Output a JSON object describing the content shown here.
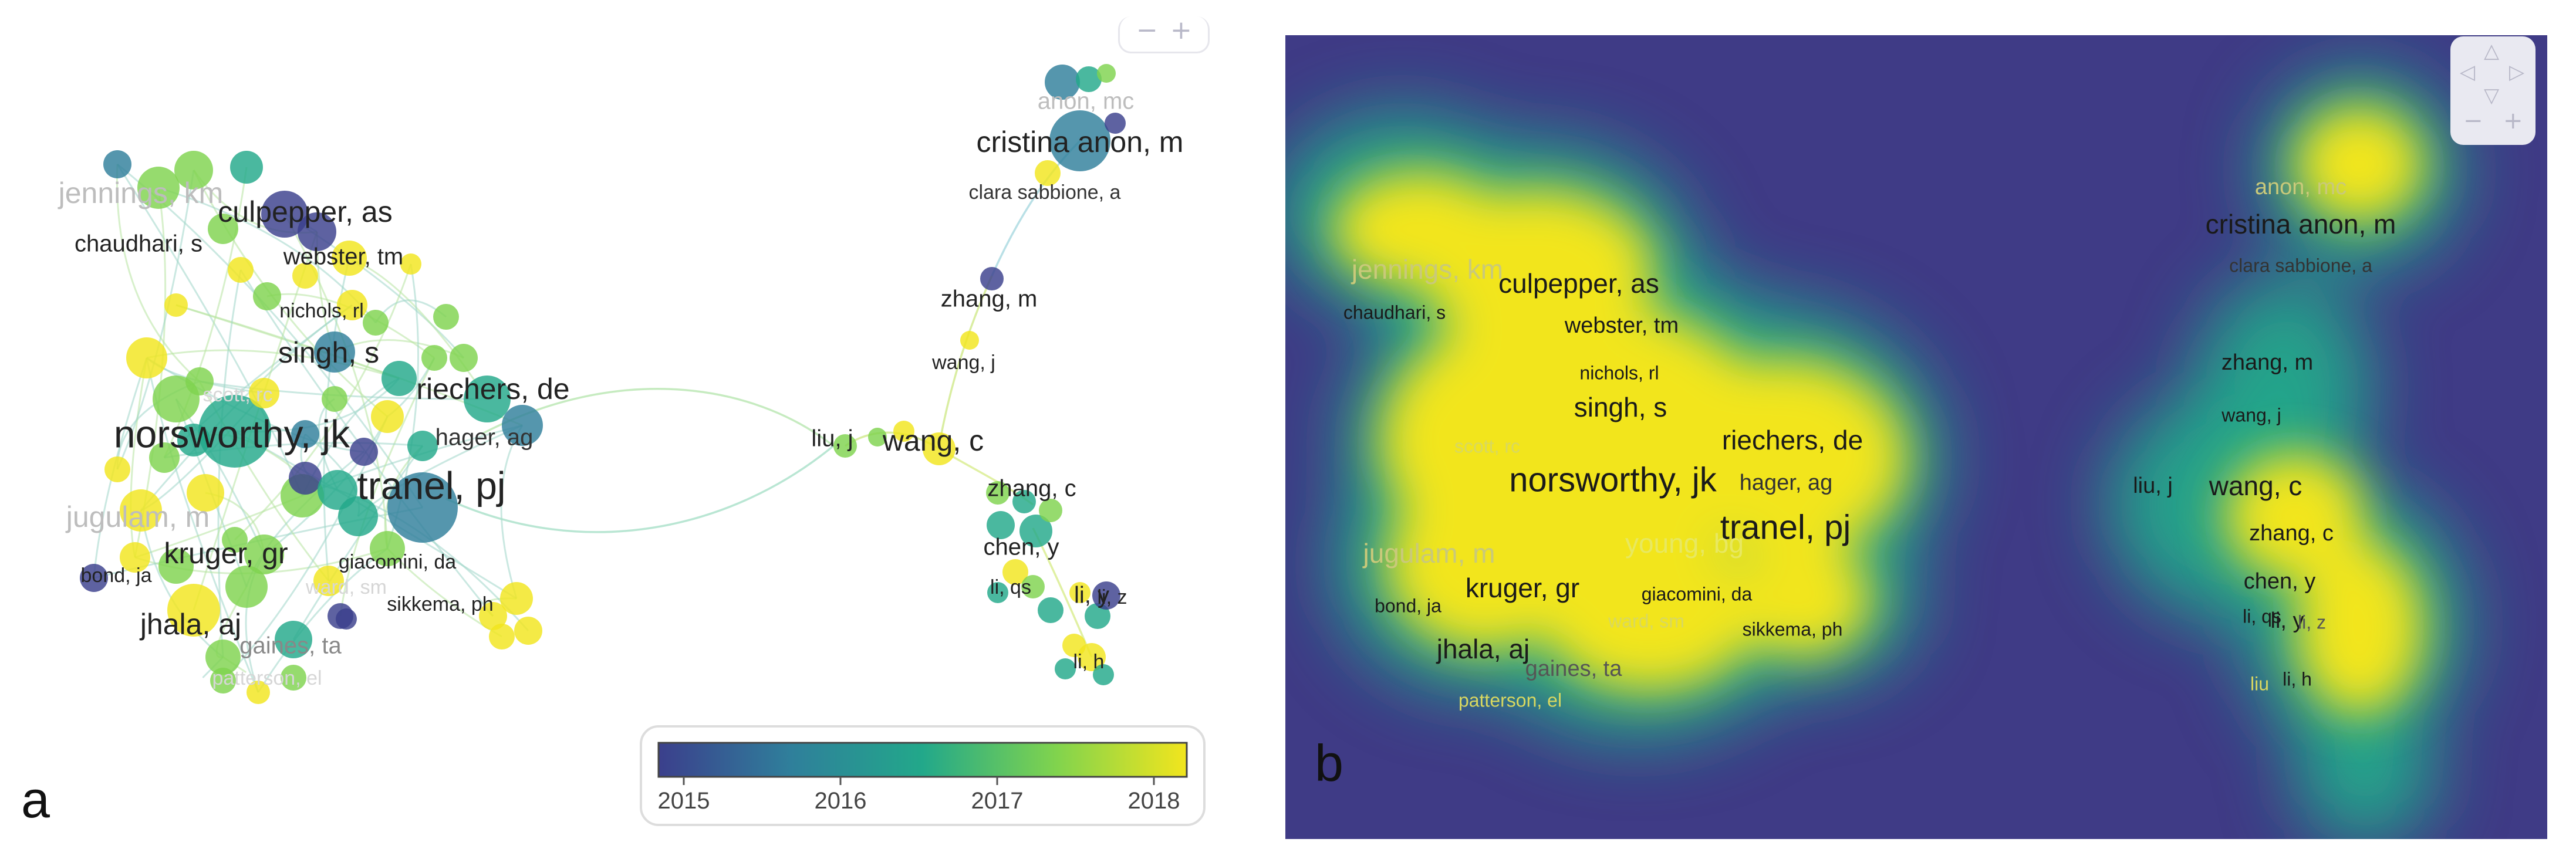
{
  "panels": {
    "a": {
      "letter": "a",
      "kind": "network-visualization",
      "legend": {
        "ticks": [
          "2015",
          "2016",
          "2017",
          "2018"
        ],
        "colors": [
          "#3b3f8c",
          "#2f7f9b",
          "#22a88a",
          "#7fd34e",
          "#f2e51d"
        ]
      },
      "labels": [
        {
          "id": "norsworthy-jk",
          "text": "norsworthy, jk",
          "size": "xl",
          "color": "#222"
        },
        {
          "id": "tranel-pj",
          "text": "tranel, pj",
          "size": "xl",
          "color": "#222"
        },
        {
          "id": "cristina-anon-m",
          "text": "cristina anon, m",
          "size": "lg",
          "color": "#222"
        },
        {
          "id": "culpepper-as",
          "text": "culpepper, as",
          "size": "lg",
          "color": "#222"
        },
        {
          "id": "riechers-de",
          "text": "riechers, de",
          "size": "lg",
          "color": "#222"
        },
        {
          "id": "singh-s",
          "text": "singh, s",
          "size": "lg",
          "color": "#222"
        },
        {
          "id": "kruger-gr",
          "text": "kruger, gr",
          "size": "lg",
          "color": "#222"
        },
        {
          "id": "jhala-aj",
          "text": "jhala, aj",
          "size": "lg",
          "color": "#222"
        },
        {
          "id": "wang-c",
          "text": "wang, c",
          "size": "lg",
          "color": "#222"
        },
        {
          "id": "jennings-km",
          "text": "jennings, km",
          "size": "lg",
          "color": "#bdbdbd"
        },
        {
          "id": "jugulam-m",
          "text": "jugulam, m",
          "size": "lg",
          "color": "#bdbdbd"
        },
        {
          "id": "anon-mc",
          "text": "anon, mc",
          "size": "md",
          "color": "#bdbdbd"
        },
        {
          "id": "gaines-ta",
          "text": "gaines, ta",
          "size": "md",
          "color": "#888"
        },
        {
          "id": "webster-tm",
          "text": "webster, tm",
          "size": "md",
          "color": "#222"
        },
        {
          "id": "hager-ag",
          "text": "hager, ag",
          "size": "md",
          "color": "#333"
        },
        {
          "id": "chaudhari-s",
          "text": "chaudhari, s",
          "size": "md",
          "color": "#222"
        },
        {
          "id": "clara-sabbione-a",
          "text": "clara sabbione, a",
          "size": "sm",
          "color": "#333"
        },
        {
          "id": "zhang-m",
          "text": "zhang, m",
          "size": "md",
          "color": "#222"
        },
        {
          "id": "wang-j",
          "text": "wang, j",
          "size": "sm",
          "color": "#222"
        },
        {
          "id": "liu-j",
          "text": "liu, j",
          "size": "md",
          "color": "#222"
        },
        {
          "id": "zhang-c",
          "text": "zhang, c",
          "size": "md",
          "color": "#222"
        },
        {
          "id": "chen-y",
          "text": "chen, y",
          "size": "md",
          "color": "#222"
        },
        {
          "id": "li-qs",
          "text": "li, qs",
          "size": "sm",
          "color": "#222"
        },
        {
          "id": "li-y",
          "text": "li, y",
          "size": "md",
          "color": "#222"
        },
        {
          "id": "li-z",
          "text": "li, z",
          "size": "sm",
          "color": "#222"
        },
        {
          "id": "li-h",
          "text": "li, h",
          "size": "sm",
          "color": "#222"
        },
        {
          "id": "nichols-rl",
          "text": "nichols, rl",
          "size": "sm",
          "color": "#222"
        },
        {
          "id": "giacomini-da",
          "text": "giacomini, da",
          "size": "sm",
          "color": "#222"
        },
        {
          "id": "sikkema-ph",
          "text": "sikkema, ph",
          "size": "sm",
          "color": "#222"
        },
        {
          "id": "bond-ja",
          "text": "bond, ja",
          "size": "sm",
          "color": "#222"
        },
        {
          "id": "scott-rc",
          "text": "scott, rc",
          "size": "sm",
          "color": "#d6d6d6"
        },
        {
          "id": "ward-sm",
          "text": "ward, sm",
          "size": "sm",
          "color": "#d6d6d6"
        },
        {
          "id": "patterson-el",
          "text": "patterson, el",
          "size": "sm",
          "color": "#d6d6d6"
        }
      ]
    },
    "b": {
      "letter": "b",
      "kind": "density-visualization",
      "labels": [
        {
          "id": "norsworthy-jk",
          "text": "norsworthy, jk",
          "size": "xl",
          "color": "#1a1a1a"
        },
        {
          "id": "tranel-pj",
          "text": "tranel, pj",
          "size": "xl",
          "color": "#1a1a1a"
        },
        {
          "id": "cristina-anon-m",
          "text": "cristina anon, m",
          "size": "lg",
          "color": "#1a1a1a"
        },
        {
          "id": "anon-mc",
          "text": "anon, mc",
          "size": "md",
          "color": "#c9c97a"
        },
        {
          "id": "clara-sabbione-a",
          "text": "clara sabbione, a",
          "size": "sm",
          "color": "#333"
        },
        {
          "id": "culpepper-as",
          "text": "culpepper, as",
          "size": "lg",
          "color": "#1a1a1a"
        },
        {
          "id": "jennings-km",
          "text": "jennings, km",
          "size": "lg",
          "color": "#c9c97a"
        },
        {
          "id": "chaudhari-s",
          "text": "chaudhari, s",
          "size": "sm",
          "color": "#1a1a1a"
        },
        {
          "id": "webster-tm",
          "text": "webster, tm",
          "size": "md",
          "color": "#1a1a1a"
        },
        {
          "id": "nichols-rl",
          "text": "nichols, rl",
          "size": "sm",
          "color": "#1a1a1a"
        },
        {
          "id": "singh-s",
          "text": "singh, s",
          "size": "lg",
          "color": "#1a1a1a"
        },
        {
          "id": "riechers-de",
          "text": "riechers, de",
          "size": "lg",
          "color": "#1a1a1a"
        },
        {
          "id": "hager-ag",
          "text": "hager, ag",
          "size": "md",
          "color": "#333"
        },
        {
          "id": "scott-rc",
          "text": "scott, rc",
          "size": "sm",
          "color": "#d8d860"
        },
        {
          "id": "young-bg",
          "text": "young, bg",
          "size": "lg",
          "color": "#e8e860"
        },
        {
          "id": "jugulam-m",
          "text": "jugulam, m",
          "size": "lg",
          "color": "#c9c97a"
        },
        {
          "id": "kruger-gr",
          "text": "kruger, gr",
          "size": "lg",
          "color": "#1a1a1a"
        },
        {
          "id": "giacomini-da",
          "text": "giacomini, da",
          "size": "sm",
          "color": "#1a1a1a"
        },
        {
          "id": "bond-ja",
          "text": "bond, ja",
          "size": "sm",
          "color": "#1a1a1a"
        },
        {
          "id": "jhala-aj",
          "text": "jhala, aj",
          "size": "lg",
          "color": "#1a1a1a"
        },
        {
          "id": "ward-sm",
          "text": "ward, sm",
          "size": "sm",
          "color": "#d8d860"
        },
        {
          "id": "sikkema-ph",
          "text": "sikkema, ph",
          "size": "sm",
          "color": "#1a1a1a"
        },
        {
          "id": "gaines-ta",
          "text": "gaines, ta",
          "size": "md",
          "color": "#555"
        },
        {
          "id": "patterson-el",
          "text": "patterson, el",
          "size": "sm",
          "color": "#d8d860"
        },
        {
          "id": "zhang-m",
          "text": "zhang, m",
          "size": "md",
          "color": "#1a1a1a"
        },
        {
          "id": "wang-j",
          "text": "wang, j",
          "size": "sm",
          "color": "#1a1a1a"
        },
        {
          "id": "liu-j",
          "text": "liu, j",
          "size": "md",
          "color": "#1a1a1a"
        },
        {
          "id": "wang-c",
          "text": "wang, c",
          "size": "lg",
          "color": "#1a1a1a"
        },
        {
          "id": "zhang-c",
          "text": "zhang, c",
          "size": "md",
          "color": "#1a1a1a"
        },
        {
          "id": "chen-y",
          "text": "chen, y",
          "size": "md",
          "color": "#1a1a1a"
        },
        {
          "id": "li-qs",
          "text": "li, qs",
          "size": "sm",
          "color": "#1a1a1a"
        },
        {
          "id": "li-y",
          "text": "li, y",
          "size": "md",
          "color": "#1a1a1a"
        },
        {
          "id": "li-z",
          "text": "li, z",
          "size": "sm",
          "color": "#555"
        },
        {
          "id": "li-h",
          "text": "li, h",
          "size": "sm",
          "color": "#1a1a1a"
        },
        {
          "id": "liu",
          "text": "liu",
          "size": "sm",
          "color": "#d8d860"
        }
      ],
      "colors": {
        "background": "#3f3b86",
        "mid": "#22a88a",
        "high": "#f2e51d"
      }
    }
  }
}
